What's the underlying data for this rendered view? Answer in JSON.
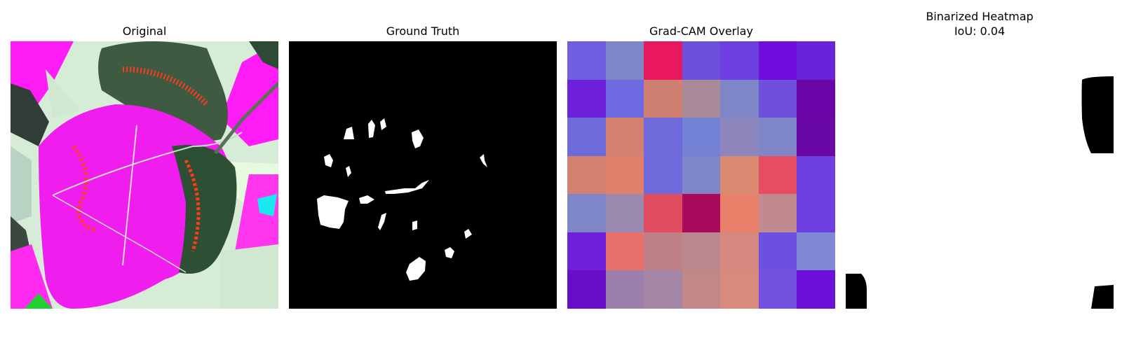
{
  "figure": {
    "panels": [
      {
        "title": "Original"
      },
      {
        "title": "Ground Truth"
      },
      {
        "title": "Grad-CAM Overlay"
      },
      {
        "title": "Binarized Heatmap",
        "subtitle": "IoU: 0.04"
      }
    ],
    "heatmap_colors": [
      [
        "#6f5fe0",
        "#7f86c8",
        "#e8175f",
        "#6c4fdd",
        "#6d3fe0",
        "#6e0ddc",
        "#6a22dc"
      ],
      [
        "#6e1fdc",
        "#6e69e0",
        "#d08070",
        "#a98a9a",
        "#7f86c8",
        "#6e50dc",
        "#6a05a8"
      ],
      [
        "#6e6adc",
        "#d48070",
        "#6e6adc",
        "#7482d6",
        "#8c86bc",
        "#7f86c8",
        "#6a08a6"
      ],
      [
        "#d28070",
        "#e0806a",
        "#6e6adc",
        "#7f86c8",
        "#d98a70",
        "#e84c60",
        "#6e3ee0"
      ],
      [
        "#7f86c8",
        "#9b88ae",
        "#e04c60",
        "#a80a5c",
        "#e8806a",
        "#c08a8e",
        "#6e3ee0"
      ],
      [
        "#6e1fdc",
        "#e8706a",
        "#c08088",
        "#bc8890",
        "#d48880",
        "#6e50e0",
        "#7f88d4"
      ],
      [
        "#6a0dc8",
        "#9a80aa",
        "#a486a6",
        "#c28888",
        "#d88a7c",
        "#7450e0",
        "#6e10dc"
      ]
    ]
  }
}
